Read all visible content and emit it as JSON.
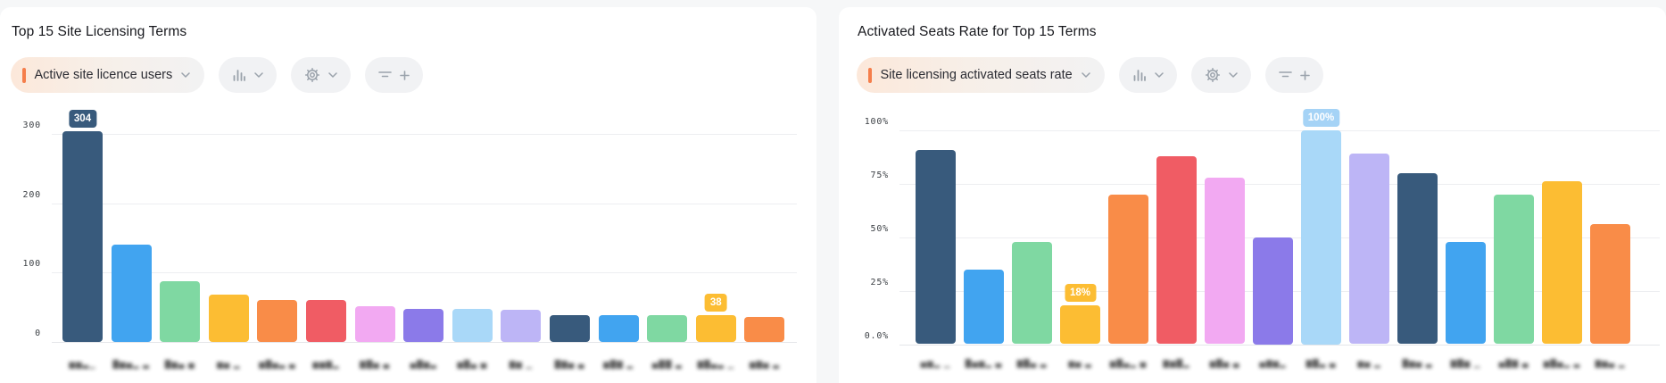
{
  "page": {
    "background": "#f6f7f8",
    "card_background": "#ffffff"
  },
  "colors": {
    "palette": [
      "#385a7c",
      "#41a4f0",
      "#7fd8a2",
      "#fcbd33",
      "#f98c48",
      "#f05c64",
      "#f2a9f2",
      "#8b7ae9",
      "#a9d8f8",
      "#bdb5f6"
    ],
    "accent_orange": "#f57e4b",
    "grid": "#edeef1",
    "tick_text": "#3c4045"
  },
  "panels": [
    {
      "title": "Top 15 Site Licensing Terms",
      "toolbar": {
        "metric_label": "Active site licence users",
        "icons": [
          "bar-chart-icon",
          "gear-icon",
          "filter-icon",
          "plus-icon"
        ]
      }
    },
    {
      "title": "Activated Seats Rate for Top 15 Terms",
      "toolbar": {
        "metric_label": "Site licensing activated seats rate",
        "icons": [
          "bar-chart-icon",
          "gear-icon",
          "filter-icon",
          "plus-icon"
        ]
      }
    }
  ],
  "chart_data": [
    {
      "type": "bar",
      "title": "Top 15 Site Licensing Terms",
      "xlabel": "",
      "ylabel": "Active site licence users",
      "ylim": [
        0,
        320
      ],
      "yticks": [
        0,
        100,
        200,
        300
      ],
      "ytick_labels": [
        "0",
        "100",
        "200",
        "300"
      ],
      "grid": true,
      "legend": false,
      "categories_redacted": true,
      "categories": [
        "▆▆▃▁",
        "█▆▅▂ ▃",
        "█▆▄ ▅",
        "▆▅ ▂",
        "▆█▅▃ ▄",
        "▆▆▇▂",
        "▇█▅ ▄",
        "▅█▆▃",
        "▆█▄ ▅",
        "▇▆ ▁",
        "█▇▅ ▄",
        "▆█▇ ▂",
        "▅██ ▃",
        "▇█▄▃ ▁",
        "▆▇▅ ▃"
      ],
      "values": [
        304,
        140,
        87,
        68,
        61,
        60,
        51,
        48,
        47,
        46,
        39,
        38,
        38,
        38,
        36
      ],
      "annotations": [
        {
          "index": 0,
          "text": "304",
          "color": "#385a7c"
        },
        {
          "index": 13,
          "text": "38",
          "color": "#fcbd33"
        }
      ]
    },
    {
      "type": "bar",
      "title": "Activated Seats Rate for Top 15 Terms",
      "xlabel": "",
      "ylabel": "Site licensing activated seats rate",
      "ylim": [
        0,
        104
      ],
      "yticks": [
        0,
        25,
        50,
        75,
        100
      ],
      "ytick_labels": [
        "0.0%",
        "25%",
        "50%",
        "75%",
        "100%"
      ],
      "grid": true,
      "legend": false,
      "categories_redacted": true,
      "categories": [
        "▅▆▂ ▁",
        "█▅▆▂ ▄",
        "▇█▄ ▃",
        "▆▅ ▃",
        "▆█▄▂ ▅",
        "▇▆█▂",
        "▆█▅ ▄",
        "▅▇▆▂",
        "▇█▃ ▄",
        "▆▅ ▂",
        "█▆▅ ▃",
        "▇█▆ ▁",
        "▅█▇ ▄",
        "▆█▅▂ ▃",
        "▇▆▄ ▂"
      ],
      "values": [
        91,
        35,
        48,
        18,
        70,
        88,
        78,
        50,
        100,
        89,
        80,
        48,
        70,
        76,
        56
      ],
      "annotations": [
        {
          "index": 3,
          "text": "18%",
          "color": "#fcbd33"
        },
        {
          "index": 8,
          "text": "100%",
          "color": "#a5d3f6"
        }
      ]
    }
  ]
}
